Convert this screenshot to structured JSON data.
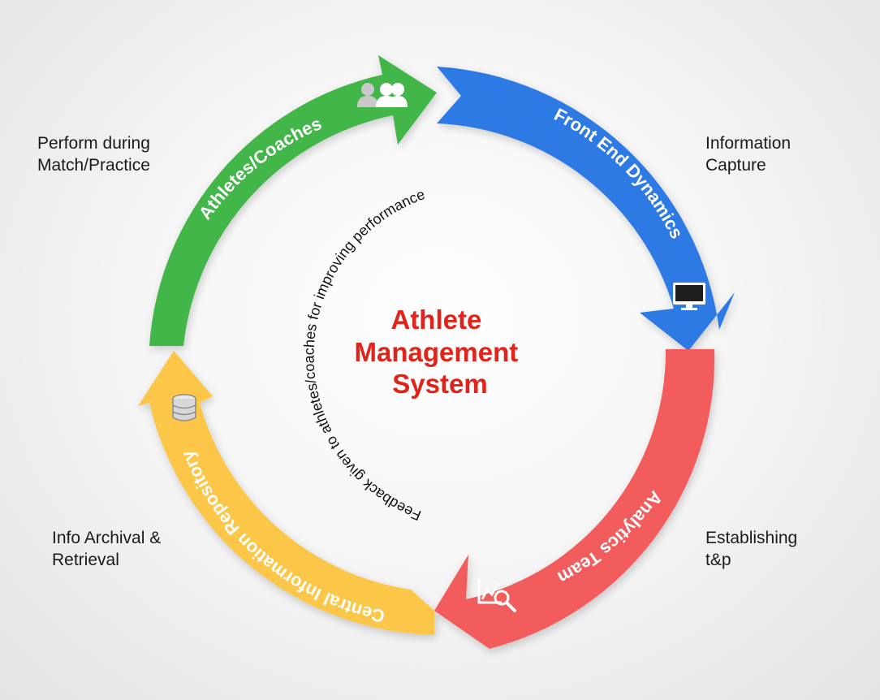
{
  "center_title": [
    "Athlete",
    "Management",
    "System"
  ],
  "feedback_text": "Feedback given to athletes/coaches for improving performance",
  "arcs": [
    {
      "label": "Athletes/Coaches",
      "color": "#43b649",
      "icon": "users-icon"
    },
    {
      "label": "Front End Dynamics",
      "color": "#2f7ae5",
      "icon": "monitor-icon"
    },
    {
      "label": "Analytics Team",
      "color": "#f25c5c",
      "icon": "analytics-magnifier-icon"
    },
    {
      "label": "Central Information Repository",
      "color": "#fcc74a",
      "icon": "database-icon"
    }
  ],
  "side_labels": {
    "top_left": [
      "Perform during",
      "Match/Practice"
    ],
    "top_right": [
      "Information",
      "Capture"
    ],
    "bottom_right": [
      "Establishing",
      "t&p"
    ],
    "bottom_left": [
      "Info Archival &",
      "Retrieval"
    ]
  },
  "colors": {
    "title": "#e2231a",
    "text": "#1a1a1a"
  }
}
